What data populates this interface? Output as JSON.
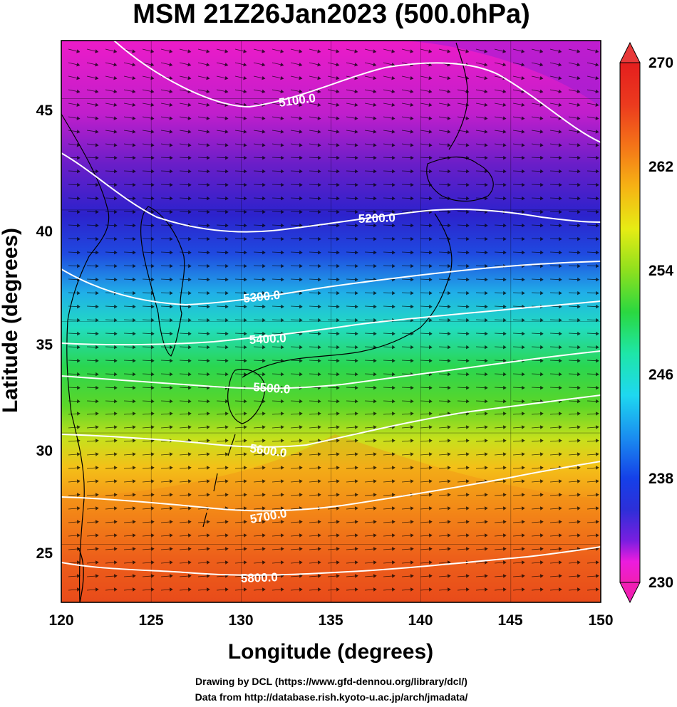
{
  "title": "MSM 21Z26Jan2023 (500.0hPa)",
  "axes": {
    "x_label": "Longitude (degrees)",
    "y_label": "Latitude  (degrees)",
    "x_range": [
      120,
      150
    ],
    "y_range": [
      22.4,
      47.6
    ],
    "x_ticks": [
      "120",
      "125",
      "130",
      "135",
      "140",
      "145",
      "150"
    ],
    "y_ticks": [
      "25",
      "30",
      "35",
      "40",
      "45"
    ]
  },
  "colorbar": {
    "min": 230,
    "max": 270,
    "tick_labels": [
      "270",
      "262",
      "254",
      "246",
      "238",
      "230"
    ],
    "colors": [
      "#f01fb4",
      "#ec1cde",
      "#7a1ee0",
      "#2d2fd8",
      "#1540e8",
      "#1a8ef0",
      "#1ed8f0",
      "#1ee6a8",
      "#2ad840",
      "#8ee01e",
      "#e6ec14",
      "#f6b414",
      "#f47418",
      "#ec3a1e",
      "#e41e1e"
    ]
  },
  "contours": {
    "labels": [
      "5100.0",
      "5200.0",
      "5300.0",
      "5400.0",
      "5500.0",
      "5600.0",
      "5700.0",
      "5800.0"
    ],
    "color": "#ffffff"
  },
  "credits": {
    "line1": "Drawing by DCL (https://www.gfd-dennou.org/library/dcl/)",
    "line2": "Data from http://database.rish.kyoto-u.ac.jp/arch/jmadata/"
  }
}
